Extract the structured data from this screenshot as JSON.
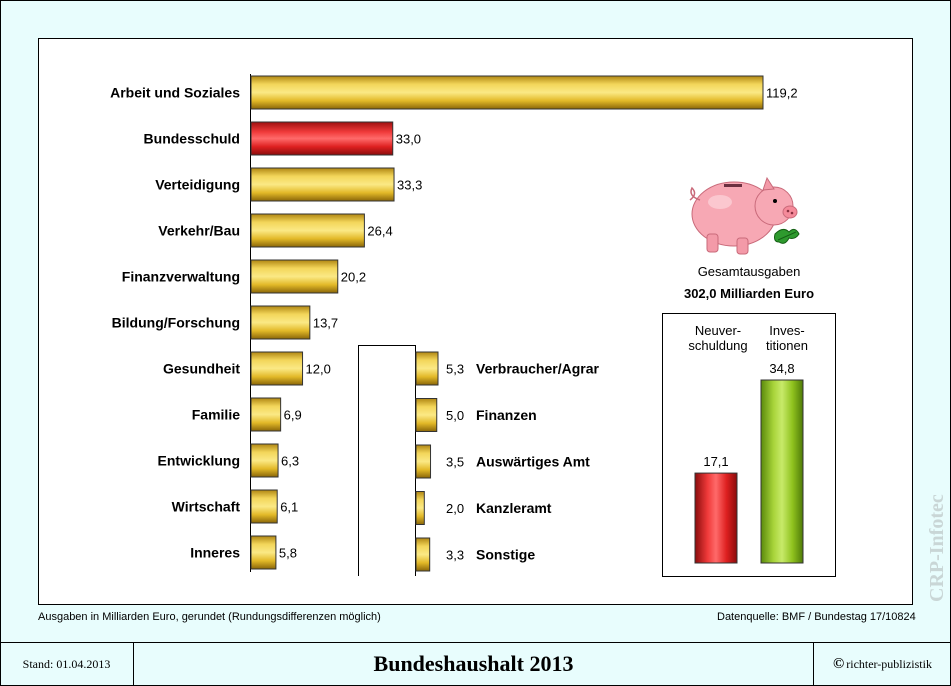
{
  "chart_data": [
    {
      "type": "bar",
      "orientation": "horizontal",
      "categories": [
        "Arbeit und Soziales",
        "Bundesschuld",
        "Verteidigung",
        "Verkehr/Bau",
        "Finanzverwaltung",
        "Bildung/Forschung",
        "Gesundheit",
        "Familie",
        "Entwicklung",
        "Wirtschaft",
        "Inneres"
      ],
      "values": [
        119.2,
        33.0,
        33.3,
        26.4,
        20.2,
        13.7,
        12.0,
        6.9,
        6.3,
        6.1,
        5.8
      ],
      "value_labels": [
        "119,2",
        "33,0",
        "33,3",
        "26,4",
        "20,2",
        "13,7",
        "12,0",
        "6,9",
        "6,3",
        "6,1",
        "5,8"
      ],
      "bar_colors": [
        "#e9c62e",
        "#e82a2a",
        "#e9c62e",
        "#e9c62e",
        "#e9c62e",
        "#e9c62e",
        "#e9c62e",
        "#e9c62e",
        "#e9c62e",
        "#e9c62e",
        "#e9c62e"
      ]
    },
    {
      "type": "bar",
      "orientation": "horizontal",
      "categories": [
        "Verbraucher/Agrar",
        "Finanzen",
        "Auswärtiges Amt",
        "Kanzleramt",
        "Sonstige"
      ],
      "values": [
        5.3,
        5.0,
        3.5,
        2.0,
        3.3
      ],
      "value_labels": [
        "5,3",
        "5,0",
        "3,5",
        "2,0",
        "3,3"
      ],
      "bar_color": "#e9c62e"
    },
    {
      "type": "bar",
      "orientation": "vertical",
      "categories": [
        "Neuver-schuldung",
        "Inves-titionen"
      ],
      "category_lines": [
        [
          "Neuver-",
          "schuldung"
        ],
        [
          "Inves-",
          "titionen"
        ]
      ],
      "values": [
        17.1,
        34.8
      ],
      "value_labels": [
        "17,1",
        "34,8"
      ],
      "bar_colors": [
        "#e82a2a",
        "#8fc21e"
      ]
    }
  ],
  "summary": {
    "label": "Gesamtausgaben",
    "value": "302,0 Milliarden Euro"
  },
  "notes": {
    "unit_note": "Ausgaben in Milliarden Euro, gerundet (Rundungsdifferenzen möglich)",
    "source": "Datenquelle: BMF / Bundestag 17/10824"
  },
  "footer": {
    "stand": "Stand: 01.04.2013",
    "title": "Bundeshaushalt 2013",
    "copyright_symbol": "©",
    "publisher": "richter-publizistik"
  },
  "watermark": "CRP-Infotec",
  "icons": [
    "piggy-bank-icon",
    "leaf-icon"
  ]
}
